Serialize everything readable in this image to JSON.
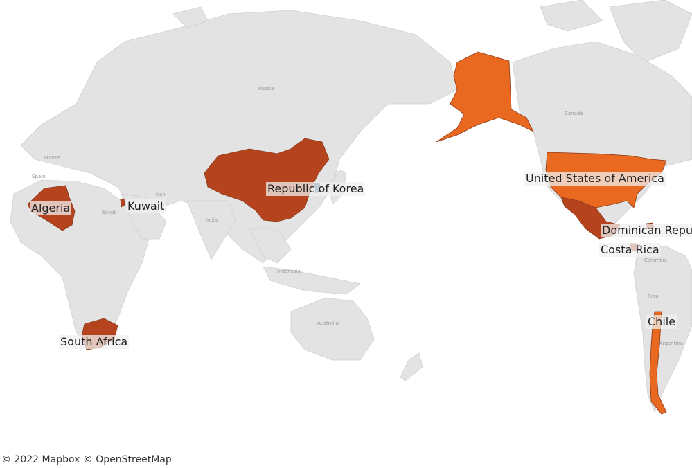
{
  "basemap_labels": {
    "russia": "Russia",
    "canada": "Canada",
    "france": "France",
    "spain": "Spain",
    "egypt": "Egypt",
    "iran": "Iran",
    "india": "India",
    "indonesia": "Indonesia",
    "australia": "Australia",
    "peru": "Peru",
    "colombia": "Colombia",
    "argentina": "Argentina"
  },
  "countries": [
    {
      "name": "Algeria",
      "color": "#b5441e"
    },
    {
      "name": "Kuwait",
      "color": "#b5441e"
    },
    {
      "name": "Republic of Korea",
      "color": "#2f5f8f"
    },
    {
      "name": "United States of America",
      "color": "#e8691f"
    },
    {
      "name": "Dominican Republic",
      "color": "#b5441e"
    },
    {
      "name": "Costa Rica",
      "color": "#b5441e"
    },
    {
      "name": "Chile",
      "color": "#e8691f"
    },
    {
      "name": "South Africa",
      "color": "#b5441e"
    }
  ],
  "extra_shaded": {
    "china": "#b5441e",
    "alaska": "#e8691f",
    "mexico": "#b5441e"
  },
  "colors": {
    "land": "#e3e3e3",
    "land_border": "#cfcfcf",
    "ocean": "#ffffff",
    "dark_orange": "#b5441e",
    "orange": "#e8691f",
    "blue": "#2f5f8f"
  },
  "attribution": "© 2022 Mapbox © OpenStreetMap"
}
